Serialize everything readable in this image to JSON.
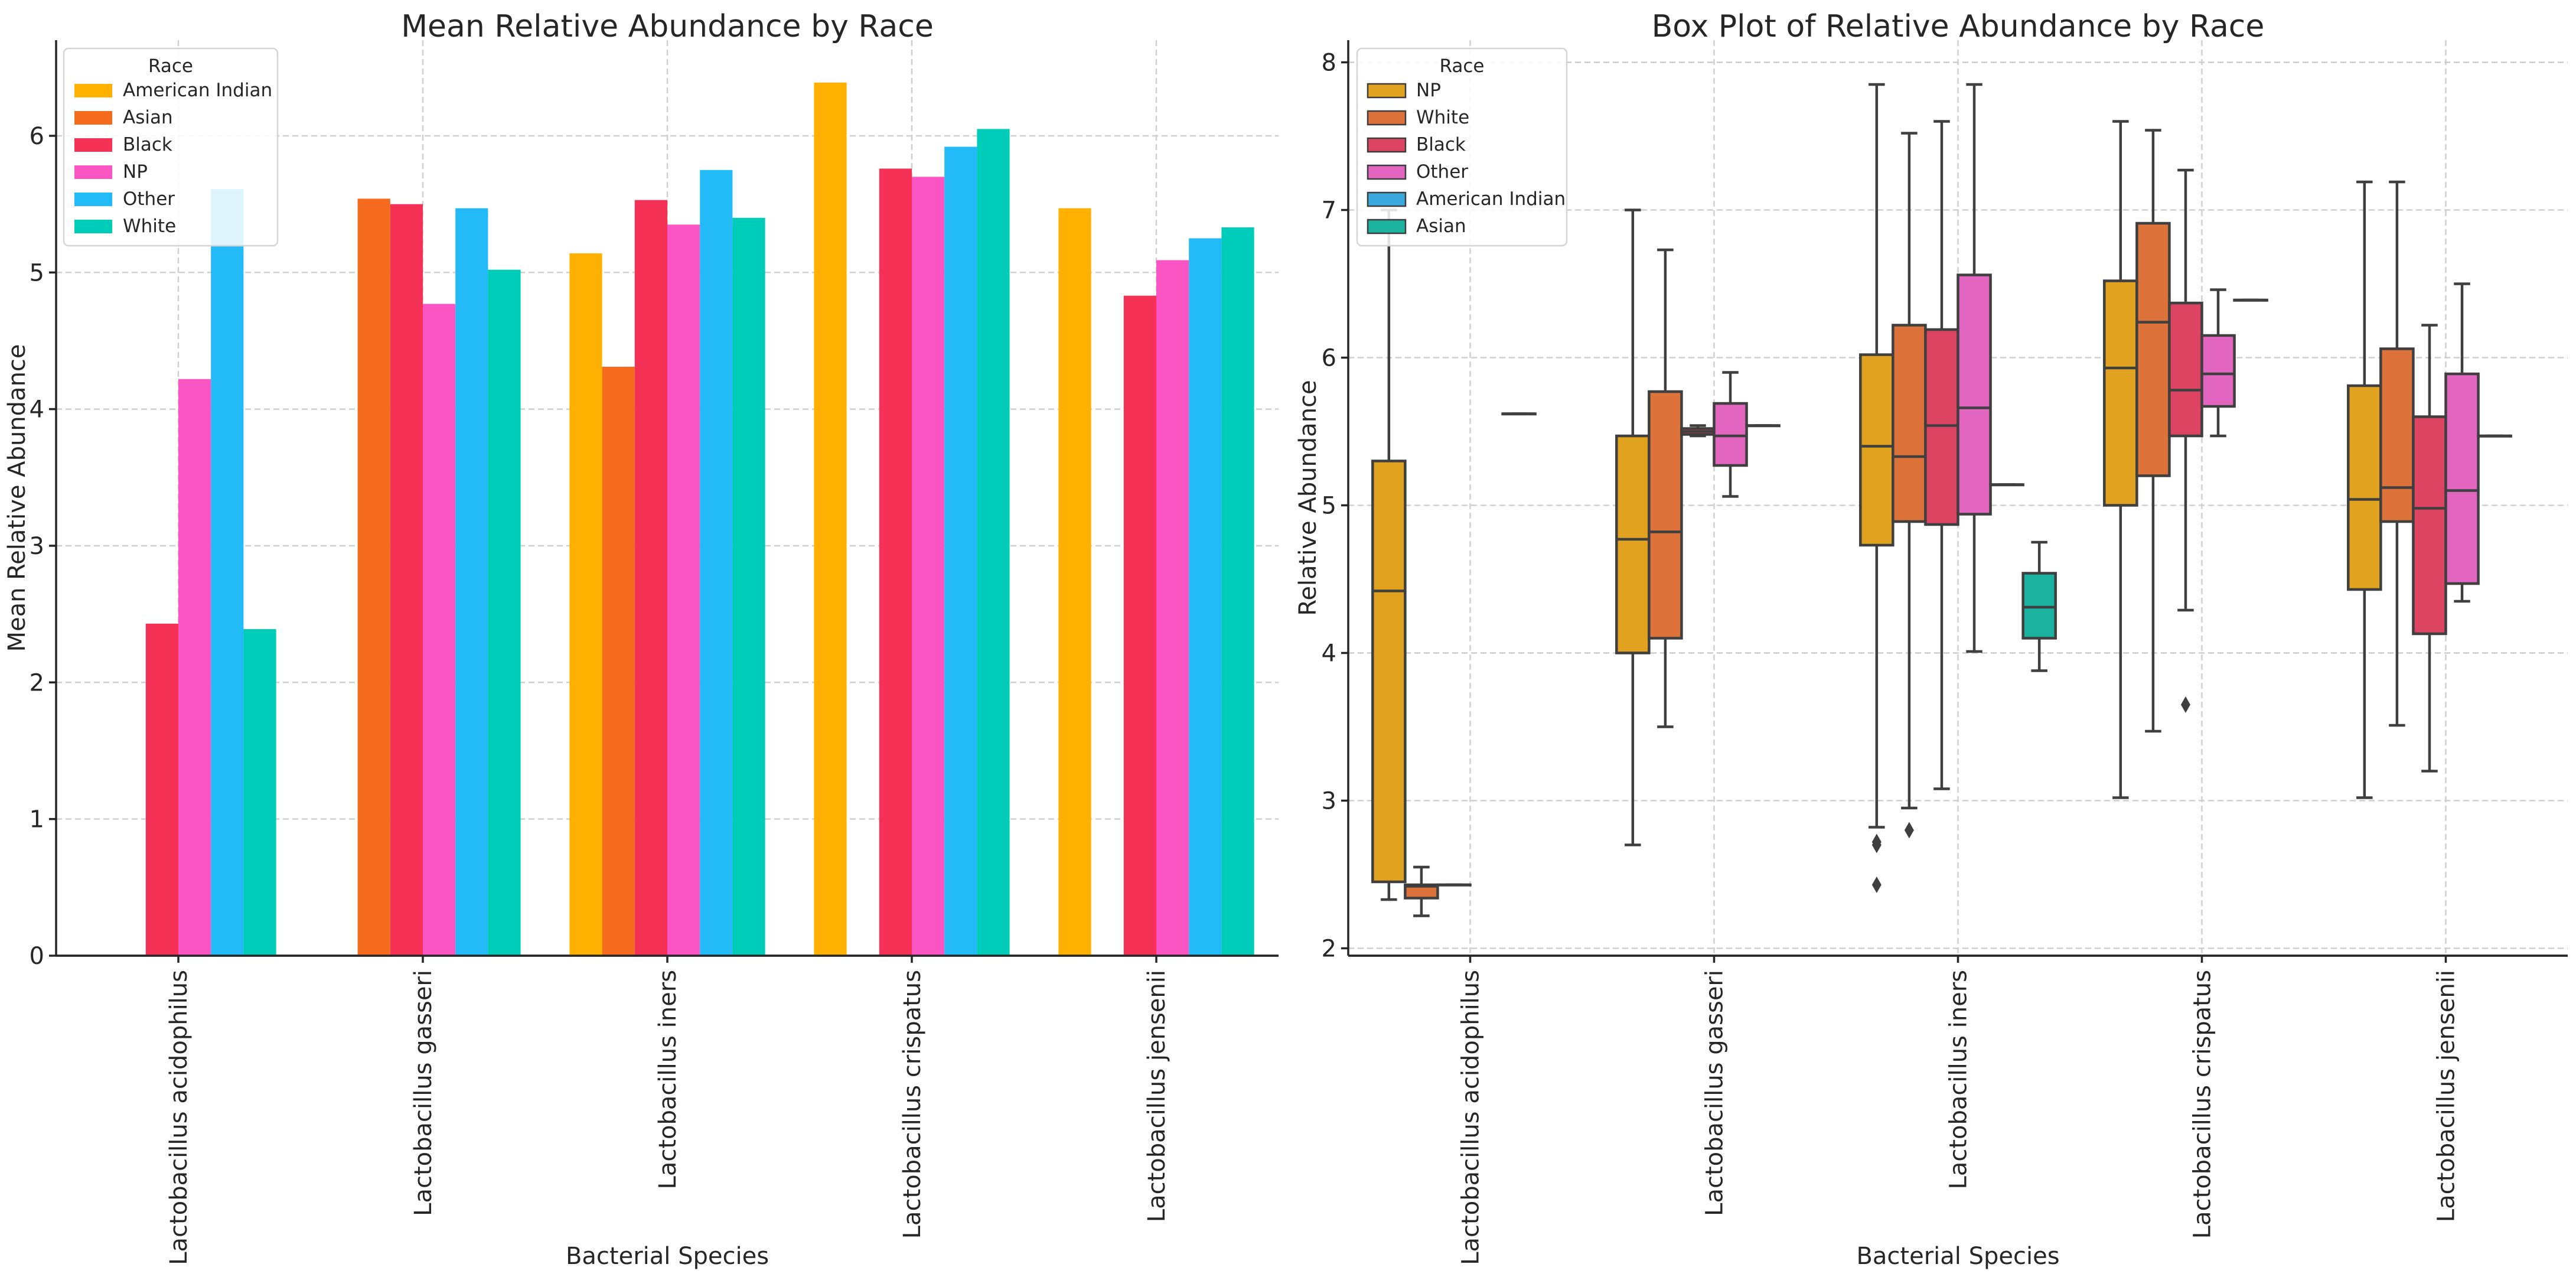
{
  "chart_data": [
    {
      "type": "bar",
      "title": "Mean Relative Abundance by Race",
      "xlabel": "Bacterial Species",
      "ylabel": "Mean Relative Abundance",
      "ylim": [
        0,
        6.7
      ],
      "yticks": [
        "0",
        "1",
        "2",
        "3",
        "4",
        "5",
        "6"
      ],
      "grid": true,
      "categories": [
        "Lactobacillus acidophilus",
        "Lactobacillus gasseri",
        "Lactobacillus iners",
        "Lactobacillus crispatus",
        "Lactobacillus jensenii"
      ],
      "legend": {
        "title": "Race",
        "placement": "top-left"
      },
      "series": [
        {
          "name": "American Indian",
          "color": "#ffb000",
          "values": [
            null,
            null,
            5.14,
            6.39,
            5.47
          ]
        },
        {
          "name": "Asian",
          "color": "#f56b1e",
          "values": [
            null,
            5.54,
            4.31,
            null,
            null
          ]
        },
        {
          "name": "Black",
          "color": "#f53255",
          "values": [
            2.43,
            5.5,
            5.53,
            5.76,
            4.83
          ]
        },
        {
          "name": "NP",
          "color": "#fa55c3",
          "values": [
            4.22,
            4.77,
            5.35,
            5.7,
            5.09
          ]
        },
        {
          "name": "Other",
          "color": "#22bbf7",
          "values": [
            5.61,
            5.47,
            5.75,
            5.92,
            5.25
          ]
        },
        {
          "name": "White",
          "color": "#00cdb9",
          "values": [
            2.39,
            5.02,
            5.4,
            6.05,
            5.33
          ]
        }
      ]
    },
    {
      "type": "box",
      "title": "Box Plot of Relative Abundance by Race",
      "xlabel": "Bacterial Species",
      "ylabel": "Relative Abundance",
      "ylim": [
        1.95,
        8.15
      ],
      "yticks": [
        "2",
        "3",
        "4",
        "5",
        "6",
        "7",
        "8"
      ],
      "grid": true,
      "categories": [
        "Lactobacillus acidophilus",
        "Lactobacillus gasseri",
        "Lactobacillus iners",
        "Lactobacillus crispatus",
        "Lactobacillus jensenii"
      ],
      "legend": {
        "title": "Race",
        "placement": "top-left"
      },
      "series": [
        {
          "name": "NP",
          "color": "#e1a31f",
          "boxes": [
            {
              "min": 2.33,
              "q1": 2.45,
              "median": 4.42,
              "q3": 5.3,
              "max": 7.0,
              "outliers": []
            },
            {
              "min": 2.7,
              "q1": 4.0,
              "median": 4.77,
              "q3": 5.47,
              "max": 7.0,
              "outliers": []
            },
            {
              "min": 2.82,
              "q1": 4.73,
              "median": 5.4,
              "q3": 6.02,
              "max": 7.85,
              "outliers": [
                2.7,
                2.72,
                2.43
              ]
            },
            {
              "min": 3.02,
              "q1": 5.0,
              "median": 5.93,
              "q3": 6.52,
              "max": 7.6,
              "outliers": []
            },
            {
              "min": 3.02,
              "q1": 4.43,
              "median": 5.04,
              "q3": 5.81,
              "max": 7.19,
              "outliers": []
            }
          ]
        },
        {
          "name": "White",
          "color": "#dd723a",
          "boxes": [
            {
              "min": 2.22,
              "q1": 2.34,
              "median": 2.42,
              "q3": 2.43,
              "max": 2.55,
              "outliers": []
            },
            {
              "min": 3.5,
              "q1": 4.1,
              "median": 4.82,
              "q3": 5.77,
              "max": 6.73,
              "outliers": []
            },
            {
              "min": 2.95,
              "q1": 4.89,
              "median": 5.33,
              "q3": 6.22,
              "max": 7.52,
              "outliers": [
                2.8
              ]
            },
            {
              "min": 3.47,
              "q1": 5.2,
              "median": 6.24,
              "q3": 6.91,
              "max": 7.54,
              "outliers": []
            },
            {
              "min": 3.51,
              "q1": 4.89,
              "median": 5.12,
              "q3": 6.06,
              "max": 7.19,
              "outliers": []
            }
          ]
        },
        {
          "name": "Black",
          "color": "#dc4462",
          "boxes": [
            {
              "min": 2.43,
              "q1": 2.43,
              "median": 2.43,
              "q3": 2.43,
              "max": 2.43,
              "outliers": []
            },
            {
              "min": 5.47,
              "q1": 5.48,
              "median": 5.5,
              "q3": 5.52,
              "max": 5.54,
              "outliers": []
            },
            {
              "min": 3.08,
              "q1": 4.87,
              "median": 5.54,
              "q3": 6.19,
              "max": 7.6,
              "outliers": []
            },
            {
              "min": 4.29,
              "q1": 5.47,
              "median": 5.78,
              "q3": 6.37,
              "max": 7.27,
              "outliers": [
                3.65
              ]
            },
            {
              "min": 3.2,
              "q1": 4.13,
              "median": 4.98,
              "q3": 5.6,
              "max": 6.22,
              "outliers": []
            }
          ]
        },
        {
          "name": "Other",
          "color": "#e266c0",
          "boxes": [
            null,
            {
              "min": 5.06,
              "q1": 5.27,
              "median": 5.47,
              "q3": 5.69,
              "max": 5.9,
              "outliers": []
            },
            {
              "min": 4.01,
              "q1": 4.94,
              "median": 5.66,
              "q3": 6.56,
              "max": 7.85,
              "outliers": []
            },
            {
              "min": 5.47,
              "q1": 5.67,
              "median": 5.89,
              "q3": 6.15,
              "max": 6.46,
              "outliers": []
            },
            {
              "min": 4.35,
              "q1": 4.47,
              "median": 5.1,
              "q3": 5.89,
              "max": 6.5,
              "outliers": []
            }
          ]
        },
        {
          "name": "American Indian",
          "color": "#3ba9dd",
          "boxes": [
            {
              "min": 5.62,
              "q1": 5.62,
              "median": 5.62,
              "q3": 5.62,
              "max": 5.62,
              "outliers": []
            },
            {
              "min": 5.54,
              "q1": 5.54,
              "median": 5.54,
              "q3": 5.54,
              "max": 5.54,
              "outliers": []
            },
            {
              "min": 5.14,
              "q1": 5.14,
              "median": 5.14,
              "q3": 5.14,
              "max": 5.14,
              "outliers": []
            },
            {
              "min": 6.39,
              "q1": 6.39,
              "median": 6.39,
              "q3": 6.39,
              "max": 6.39,
              "outliers": []
            },
            {
              "min": 5.47,
              "q1": 5.47,
              "median": 5.47,
              "q3": 5.47,
              "max": 5.47,
              "outliers": []
            }
          ]
        },
        {
          "name": "Asian",
          "color": "#1bb3a0",
          "boxes": [
            null,
            null,
            {
              "min": 3.88,
              "q1": 4.1,
              "median": 4.31,
              "q3": 4.54,
              "max": 4.75,
              "outliers": []
            },
            null,
            null
          ]
        }
      ]
    }
  ]
}
